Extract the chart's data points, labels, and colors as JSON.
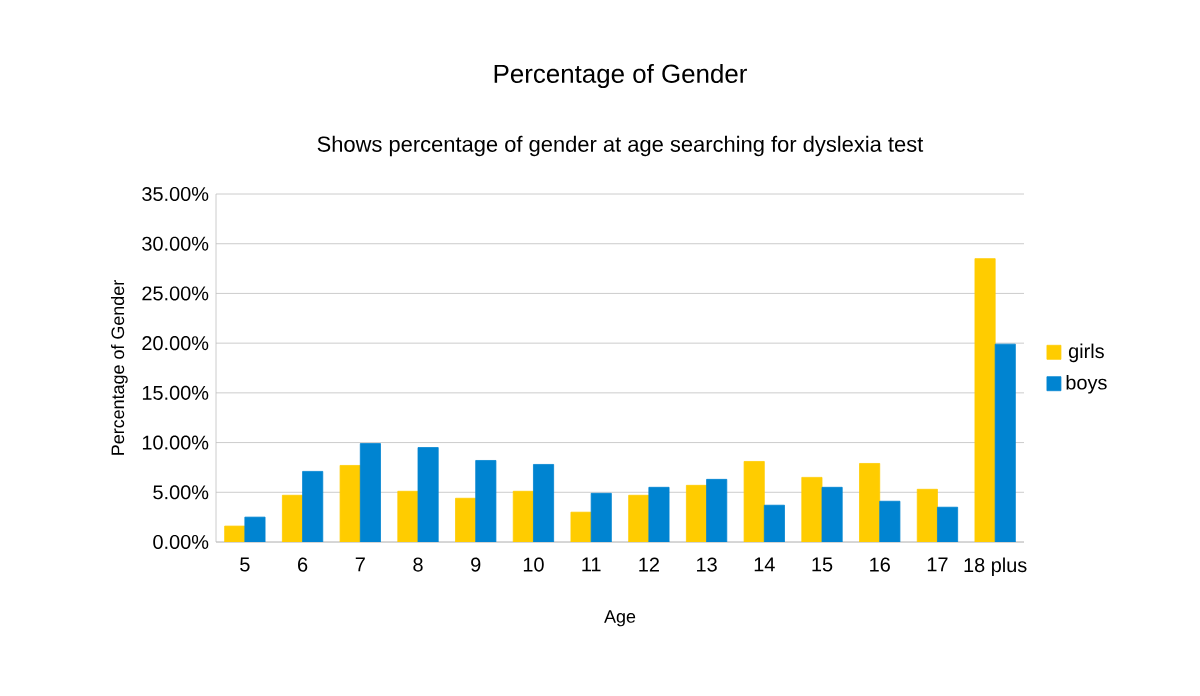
{
  "chart_data": {
    "type": "bar",
    "title": "Percentage of Gender",
    "subtitle": "Shows percentage of gender at age searching for dyslexia test",
    "xlabel": "Age",
    "ylabel": "Percentage of Gender",
    "categories": [
      "5",
      "6",
      "7",
      "8",
      "9",
      "10",
      "11",
      "12",
      "13",
      "14",
      "15",
      "16",
      "17",
      "18 plus"
    ],
    "series": [
      {
        "name": "girls",
        "color": "#ffcc00",
        "values": [
          1.6,
          4.7,
          7.7,
          5.1,
          4.4,
          5.1,
          3.0,
          4.7,
          5.7,
          8.1,
          6.5,
          7.9,
          5.3,
          28.5
        ]
      },
      {
        "name": "boys",
        "color": "#0084d1",
        "values": [
          2.5,
          7.1,
          9.9,
          9.5,
          8.2,
          7.8,
          4.9,
          5.5,
          6.3,
          3.7,
          5.5,
          4.1,
          3.5,
          19.9
        ]
      }
    ],
    "ylim": [
      0,
      35
    ],
    "yticks": [
      {
        "value": 0,
        "label": "0.00%"
      },
      {
        "value": 5,
        "label": "5.00%"
      },
      {
        "value": 10,
        "label": "10.00%"
      },
      {
        "value": 15,
        "label": "15.00%"
      },
      {
        "value": 20,
        "label": "20.00%"
      },
      {
        "value": 25,
        "label": "25.00%"
      },
      {
        "value": 30,
        "label": "30.00%"
      },
      {
        "value": 35,
        "label": "35.00%"
      }
    ],
    "grid": "y",
    "legend": "right"
  }
}
